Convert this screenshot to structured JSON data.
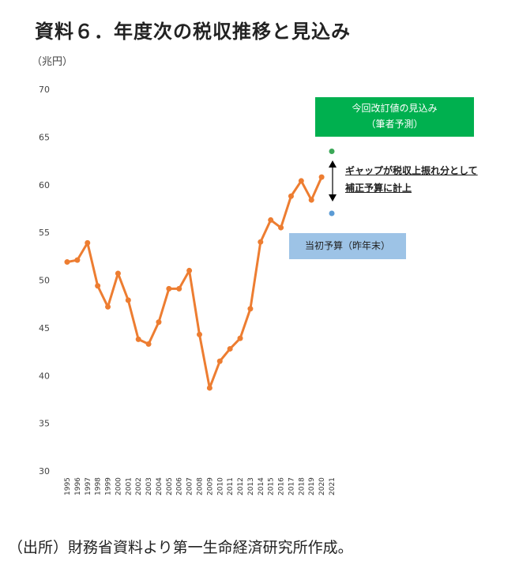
{
  "header": {
    "title": "資料６．年度次の税収推移と見込み",
    "unit": "（兆円）"
  },
  "annotations": {
    "forecast_box_line1": "今回改訂値の見込み",
    "forecast_box_line2": "（筆者予測）",
    "gap_note_line1": "ギャップが税収上振れ分として",
    "gap_note_line2": "補正予算に計上",
    "initial_budget_box": "当初予算（昨年末）"
  },
  "footer": {
    "source": "（出所）財務省資料より第一生命経済研究所作成。"
  },
  "colors": {
    "line": "#ed7d31",
    "forecast_point": "#3aa757",
    "initial_point": "#5b9bd5",
    "forecast_box": "#00b04f",
    "initial_box": "#9dc3e6"
  },
  "chart_data": {
    "type": "line",
    "title": "資料６．年度次の税収推移と見込み",
    "ylabel": "（兆円）",
    "xlabel": "",
    "ylim": [
      30,
      70
    ],
    "yticks": [
      30,
      35,
      40,
      45,
      50,
      55,
      60,
      65,
      70
    ],
    "grid": false,
    "categories": [
      "1995",
      "1996",
      "1997",
      "1998",
      "1999",
      "2000",
      "2001",
      "2002",
      "2003",
      "2004",
      "2005",
      "2006",
      "2007",
      "2008",
      "2009",
      "2010",
      "2011",
      "2012",
      "2013",
      "2014",
      "2015",
      "2016",
      "2017",
      "2018",
      "2019",
      "2020",
      "2021"
    ],
    "series": [
      {
        "name": "税収",
        "values": [
          51.9,
          52.1,
          53.9,
          49.4,
          47.2,
          50.7,
          47.9,
          43.8,
          43.3,
          45.6,
          49.1,
          49.1,
          51.0,
          44.3,
          38.7,
          41.5,
          42.8,
          43.9,
          47.0,
          54.0,
          56.3,
          55.5,
          58.8,
          60.4,
          58.4,
          60.8,
          null
        ]
      },
      {
        "name": "今回改訂値の見込み（筆者予測）",
        "points": [
          {
            "x": "2021",
            "y": 63.5
          }
        ]
      },
      {
        "name": "当初予算（昨年末）",
        "points": [
          {
            "x": "2021",
            "y": 57.0
          }
        ]
      }
    ]
  }
}
